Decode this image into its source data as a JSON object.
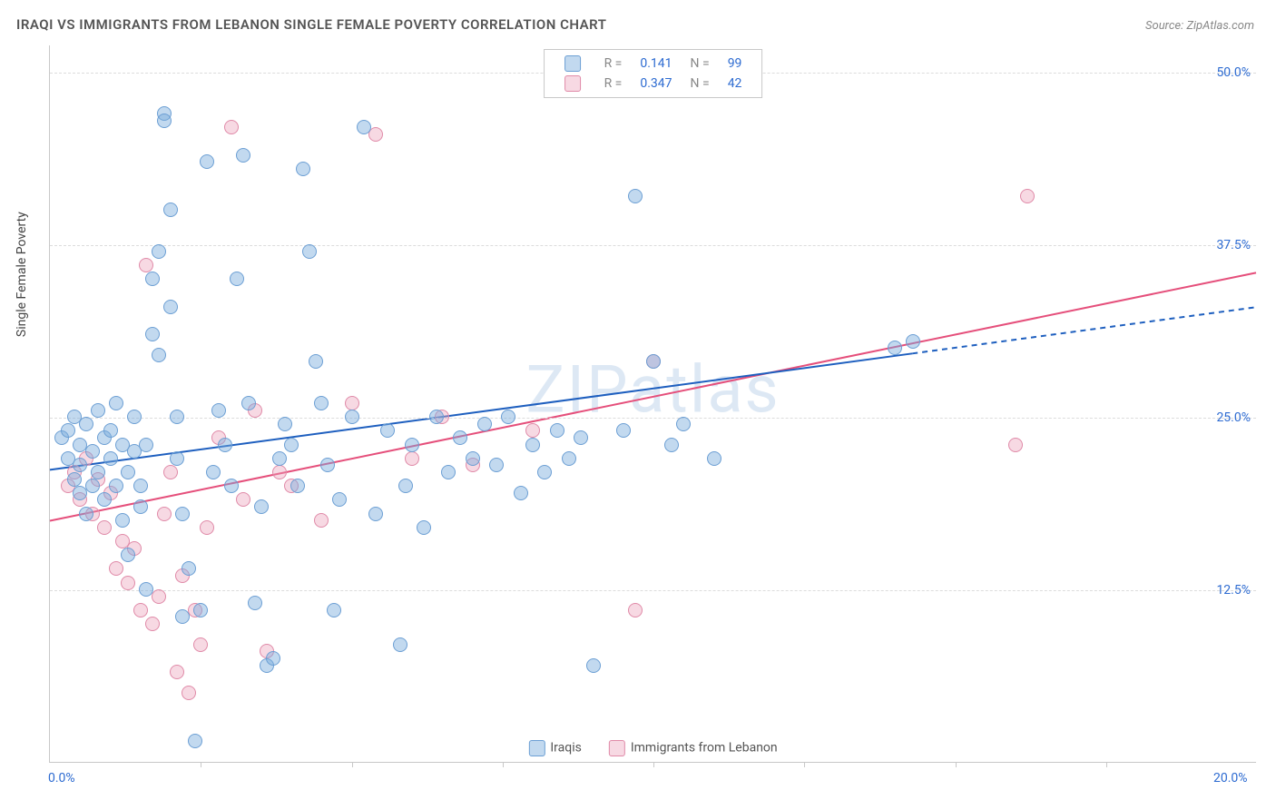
{
  "header": {
    "title": "IRAQI VS IMMIGRANTS FROM LEBANON SINGLE FEMALE POVERTY CORRELATION CHART",
    "source_prefix": "Source: ",
    "source_name": "ZipAtlas.com"
  },
  "chart": {
    "type": "scatter",
    "ylabel": "Single Female Poverty",
    "watermark": "ZIPatlas",
    "watermark_color": "#7ba7d7",
    "background_color": "#ffffff",
    "grid_color": "#dcdcdc",
    "axis_color": "#c8c8c8",
    "xlim": [
      0,
      20
    ],
    "ylim": [
      0,
      52
    ],
    "xticks": [
      {
        "value": 0.0,
        "label": "0.0%"
      },
      {
        "value": 20.0,
        "label": "20.0%"
      }
    ],
    "xtick_color": "#2d6bd1",
    "xtick_minor": [
      2.5,
      5.0,
      7.5,
      10.0,
      12.5,
      15.0,
      17.5
    ],
    "yticks": [
      {
        "value": 12.5,
        "label": "12.5%"
      },
      {
        "value": 25.0,
        "label": "25.0%"
      },
      {
        "value": 37.5,
        "label": "37.5%"
      },
      {
        "value": 50.0,
        "label": "50.0%"
      }
    ],
    "ytick_color": "#2d6bd1",
    "font_size_axis": 14
  },
  "series": {
    "iraqis": {
      "label": "Iraqis",
      "color_fill": "rgba(120,170,220,0.45)",
      "color_stroke": "#6c9fd4",
      "trend_color": "#1e5fbf",
      "trend_width": 2,
      "trend_solid_until": 14.3,
      "trend": {
        "x1": 0,
        "y1": 21.2,
        "x2": 20,
        "y2": 33.0
      },
      "R": "0.141",
      "N": "99",
      "points": [
        [
          0.2,
          23.5
        ],
        [
          0.3,
          24.0
        ],
        [
          0.3,
          22.0
        ],
        [
          0.4,
          25.0
        ],
        [
          0.4,
          20.5
        ],
        [
          0.5,
          23.0
        ],
        [
          0.5,
          21.5
        ],
        [
          0.5,
          19.5
        ],
        [
          0.6,
          24.5
        ],
        [
          0.6,
          18.0
        ],
        [
          0.7,
          22.5
        ],
        [
          0.7,
          20.0
        ],
        [
          0.8,
          25.5
        ],
        [
          0.8,
          21.0
        ],
        [
          0.9,
          23.5
        ],
        [
          0.9,
          19.0
        ],
        [
          1.0,
          24.0
        ],
        [
          1.0,
          22.0
        ],
        [
          1.1,
          26.0
        ],
        [
          1.1,
          20.0
        ],
        [
          1.2,
          23.0
        ],
        [
          1.2,
          17.5
        ],
        [
          1.3,
          21.0
        ],
        [
          1.3,
          15.0
        ],
        [
          1.4,
          22.5
        ],
        [
          1.4,
          25.0
        ],
        [
          1.5,
          18.5
        ],
        [
          1.5,
          20.0
        ],
        [
          1.6,
          23.0
        ],
        [
          1.6,
          12.5
        ],
        [
          1.7,
          35.0
        ],
        [
          1.7,
          31.0
        ],
        [
          1.8,
          37.0
        ],
        [
          1.8,
          29.5
        ],
        [
          1.9,
          47.0
        ],
        [
          1.9,
          46.5
        ],
        [
          2.0,
          40.0
        ],
        [
          2.0,
          33.0
        ],
        [
          2.1,
          25.0
        ],
        [
          2.1,
          22.0
        ],
        [
          2.2,
          18.0
        ],
        [
          2.2,
          10.5
        ],
        [
          2.3,
          14.0
        ],
        [
          2.4,
          1.5
        ],
        [
          2.5,
          11.0
        ],
        [
          2.6,
          43.5
        ],
        [
          2.7,
          21.0
        ],
        [
          2.8,
          25.5
        ],
        [
          2.9,
          23.0
        ],
        [
          3.0,
          20.0
        ],
        [
          3.1,
          35.0
        ],
        [
          3.2,
          44.0
        ],
        [
          3.3,
          26.0
        ],
        [
          3.4,
          11.5
        ],
        [
          3.5,
          18.5
        ],
        [
          3.6,
          7.0
        ],
        [
          3.7,
          7.5
        ],
        [
          3.8,
          22.0
        ],
        [
          3.9,
          24.5
        ],
        [
          4.0,
          23.0
        ],
        [
          4.1,
          20.0
        ],
        [
          4.2,
          43.0
        ],
        [
          4.3,
          37.0
        ],
        [
          4.4,
          29.0
        ],
        [
          4.5,
          26.0
        ],
        [
          4.6,
          21.5
        ],
        [
          4.7,
          11.0
        ],
        [
          4.8,
          19.0
        ],
        [
          5.0,
          25.0
        ],
        [
          5.2,
          46.0
        ],
        [
          5.4,
          18.0
        ],
        [
          5.6,
          24.0
        ],
        [
          5.8,
          8.5
        ],
        [
          5.9,
          20.0
        ],
        [
          6.0,
          23.0
        ],
        [
          6.2,
          17.0
        ],
        [
          6.4,
          25.0
        ],
        [
          6.6,
          21.0
        ],
        [
          6.8,
          23.5
        ],
        [
          7.0,
          22.0
        ],
        [
          7.2,
          24.5
        ],
        [
          7.4,
          21.5
        ],
        [
          7.6,
          25.0
        ],
        [
          7.8,
          19.5
        ],
        [
          8.0,
          23.0
        ],
        [
          8.2,
          21.0
        ],
        [
          8.4,
          24.0
        ],
        [
          8.6,
          22.0
        ],
        [
          8.8,
          23.5
        ],
        [
          9.0,
          7.0
        ],
        [
          9.5,
          24.0
        ],
        [
          9.7,
          41.0
        ],
        [
          10.0,
          29.0
        ],
        [
          10.3,
          23.0
        ],
        [
          10.5,
          24.5
        ],
        [
          11.0,
          22.0
        ],
        [
          14.0,
          30.0
        ],
        [
          14.3,
          30.5
        ]
      ]
    },
    "lebanon": {
      "label": "Immigrants from Lebanon",
      "color_fill": "rgba(235,160,185,0.40)",
      "color_stroke": "#e08aa8",
      "trend_color": "#e54f7b",
      "trend_width": 2,
      "trend": {
        "x1": 0,
        "y1": 17.5,
        "x2": 20,
        "y2": 35.5
      },
      "R": "0.347",
      "N": "42",
      "points": [
        [
          0.3,
          20.0
        ],
        [
          0.4,
          21.0
        ],
        [
          0.5,
          19.0
        ],
        [
          0.6,
          22.0
        ],
        [
          0.7,
          18.0
        ],
        [
          0.8,
          20.5
        ],
        [
          0.9,
          17.0
        ],
        [
          1.0,
          19.5
        ],
        [
          1.1,
          14.0
        ],
        [
          1.2,
          16.0
        ],
        [
          1.3,
          13.0
        ],
        [
          1.4,
          15.5
        ],
        [
          1.5,
          11.0
        ],
        [
          1.6,
          36.0
        ],
        [
          1.7,
          10.0
        ],
        [
          1.8,
          12.0
        ],
        [
          1.9,
          18.0
        ],
        [
          2.0,
          21.0
        ],
        [
          2.1,
          6.5
        ],
        [
          2.2,
          13.5
        ],
        [
          2.3,
          5.0
        ],
        [
          2.4,
          11.0
        ],
        [
          2.5,
          8.5
        ],
        [
          2.6,
          17.0
        ],
        [
          2.8,
          23.5
        ],
        [
          3.0,
          46.0
        ],
        [
          3.2,
          19.0
        ],
        [
          3.4,
          25.5
        ],
        [
          3.6,
          8.0
        ],
        [
          3.8,
          21.0
        ],
        [
          4.0,
          20.0
        ],
        [
          4.5,
          17.5
        ],
        [
          5.0,
          26.0
        ],
        [
          5.4,
          45.5
        ],
        [
          6.0,
          22.0
        ],
        [
          6.5,
          25.0
        ],
        [
          7.0,
          21.5
        ],
        [
          8.0,
          24.0
        ],
        [
          9.7,
          11.0
        ],
        [
          10.0,
          29.0
        ],
        [
          16.0,
          23.0
        ],
        [
          16.2,
          41.0
        ]
      ]
    }
  },
  "legend_top": {
    "labels": {
      "R": "R =",
      "N": "N ="
    },
    "label_color": "#888888",
    "value_color": "#2d6bd1"
  }
}
